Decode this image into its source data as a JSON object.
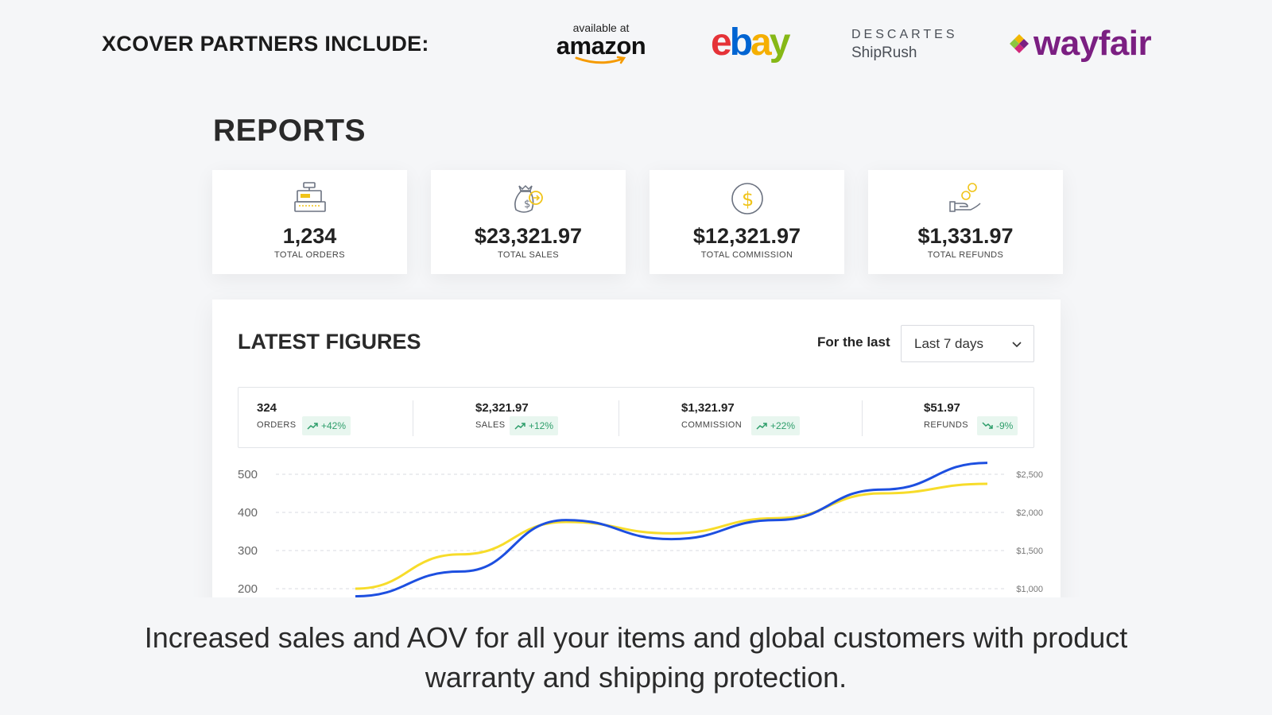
{
  "partners": {
    "title": "XCOVER PARTNERS INCLUDE:",
    "amazon": {
      "small": "available at",
      "word": "amazon"
    },
    "ebay": {
      "e": "e",
      "b": "b",
      "a": "a",
      "y": "y"
    },
    "descartes": {
      "word": "DESCARTES",
      "sub": "ShipRush"
    },
    "wayfair": {
      "word": "wayfair"
    }
  },
  "reports": {
    "title": "REPORTS",
    "cards": [
      {
        "icon": "cash-register-icon",
        "value": "1,234",
        "label": "TOTAL ORDERS"
      },
      {
        "icon": "money-bag-icon",
        "value": "$23,321.97",
        "label": "TOTAL SALES"
      },
      {
        "icon": "dollar-coin-icon",
        "value": "$12,321.97",
        "label": "TOTAL COMMISSION"
      },
      {
        "icon": "hand-coins-icon",
        "value": "$1,331.97",
        "label": "TOTAL REFUNDS"
      }
    ]
  },
  "latest": {
    "title": "LATEST FIGURES",
    "filter_label": "For the last",
    "filter_value": "Last 7 days",
    "metrics": [
      {
        "value": "324",
        "label": "ORDERS",
        "change": "+42%",
        "trend": "up"
      },
      {
        "value": "$2,321.97",
        "label": "SALES",
        "change": "+12%",
        "trend": "up"
      },
      {
        "value": "$1,321.97",
        "label": "COMMISSION",
        "change": "+22%",
        "trend": "up"
      },
      {
        "value": "$51.97",
        "label": "REFUNDS",
        "change": "-9%",
        "trend": "down"
      }
    ]
  },
  "chart_data": {
    "type": "line",
    "y_ticks_left": [
      "500",
      "400",
      "300",
      "200"
    ],
    "y_ticks_right": [
      "$2,500",
      "$2,000",
      "$1,500",
      "$1,000"
    ],
    "ylim_left": [
      200,
      500
    ],
    "grid": true,
    "x": [
      0,
      1,
      2,
      3,
      4,
      5,
      6
    ],
    "series": [
      {
        "color": "#1d4fe0",
        "values": [
          180,
          245,
          380,
          330,
          380,
          460,
          530
        ]
      },
      {
        "color": "#f7dc2a",
        "values": [
          200,
          290,
          375,
          345,
          385,
          450,
          475
        ]
      }
    ]
  },
  "caption": "Increased sales and AOV for all your items and global customers with product warranty and shipping protection.",
  "colors": {
    "background": "#f5f6f8",
    "badge_bg": "#e8f6ef",
    "badge_text": "#2e9e6b",
    "icon_yellow": "#f0c419",
    "icon_gray": "#6b7280"
  }
}
